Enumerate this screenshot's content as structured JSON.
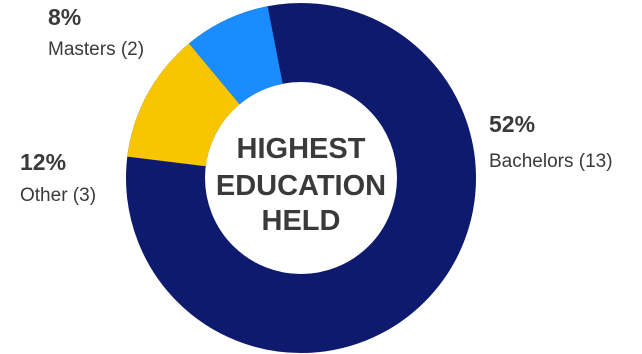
{
  "chart_data": {
    "type": "pie",
    "donut": true,
    "title_lines": [
      "HIGHEST",
      "EDUCATION",
      "HELD"
    ],
    "segments": [
      {
        "name": "Bachelors",
        "count": 13,
        "count_label": "Bachelors (13)",
        "percent": 52,
        "percent_label": "52%",
        "color": "#0d1a6e"
      },
      {
        "name": "Masters",
        "count": 2,
        "count_label": "Masters (2)",
        "percent": 8,
        "percent_label": "8%",
        "color": "#1a8cff"
      },
      {
        "name": "Other",
        "count": 3,
        "count_label": "Other (3)",
        "percent": 12,
        "percent_label": "12%",
        "color": "#f7c600"
      }
    ],
    "legend": "none"
  }
}
